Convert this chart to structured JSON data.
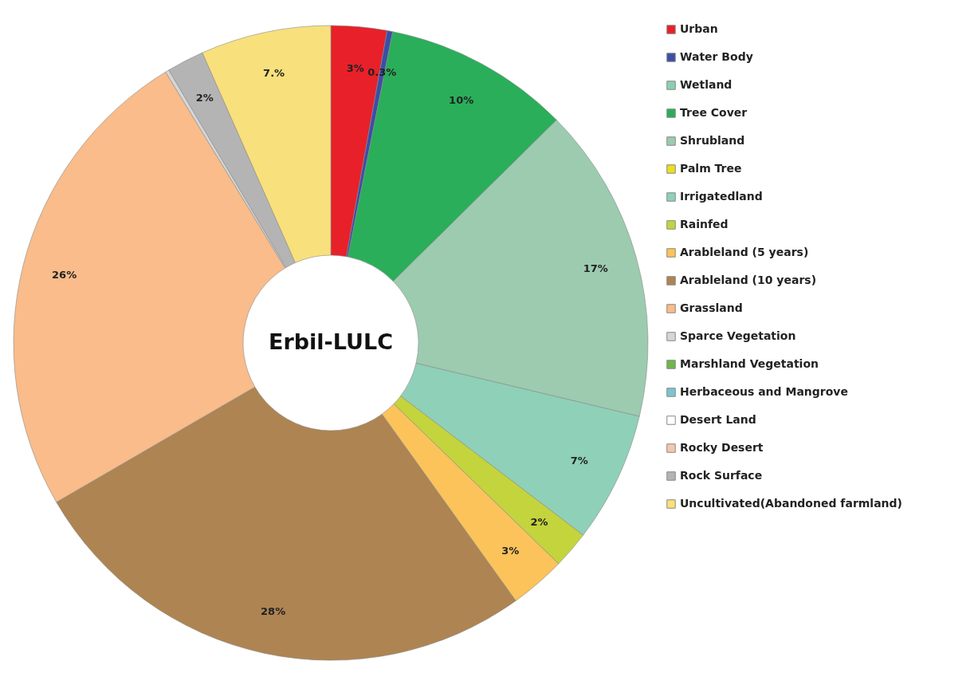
{
  "chart_data": {
    "type": "donut",
    "title": "Erbil-LULC",
    "categories": [
      "Urban",
      "Water Body",
      "Wetland",
      "Tree Cover",
      "Shrubland",
      "Palm Tree",
      "Irrigatedland",
      "Rainfed",
      "Arableland (5 years)",
      "Arableland (10 years)",
      "Grassland",
      "Sparce Vegetation",
      "Marshland Vegetation",
      "Herbaceous and Mangrove",
      "Desert Land",
      "Rocky Desert",
      "Rock Surface",
      "Uncultivated(Abandoned farmland)"
    ],
    "values": [
      3,
      0.3,
      0,
      10,
      17,
      0,
      7,
      2,
      3,
      28,
      26,
      0.2,
      0,
      0,
      0,
      0,
      2,
      7
    ],
    "value_labels": [
      "3%",
      "0.3%",
      null,
      "10%",
      "17%",
      null,
      "7%",
      "2%",
      "3%",
      "28%",
      "26%",
      null,
      null,
      null,
      null,
      null,
      "2%",
      "7.%"
    ],
    "colors": [
      "#e8202a",
      "#3b4fa8",
      "#8ccfb0",
      "#2aae5a",
      "#9ccbb0",
      "#e8e020",
      "#8fd0b8",
      "#c4d43c",
      "#fbc35a",
      "#ae8452",
      "#f9bc8a",
      "#d6d6d6",
      "#6db848",
      "#7cc4d0",
      "#ffffff",
      "#f4c8a8",
      "#b4b4b4",
      "#f8e07c"
    ],
    "legend": "right"
  }
}
